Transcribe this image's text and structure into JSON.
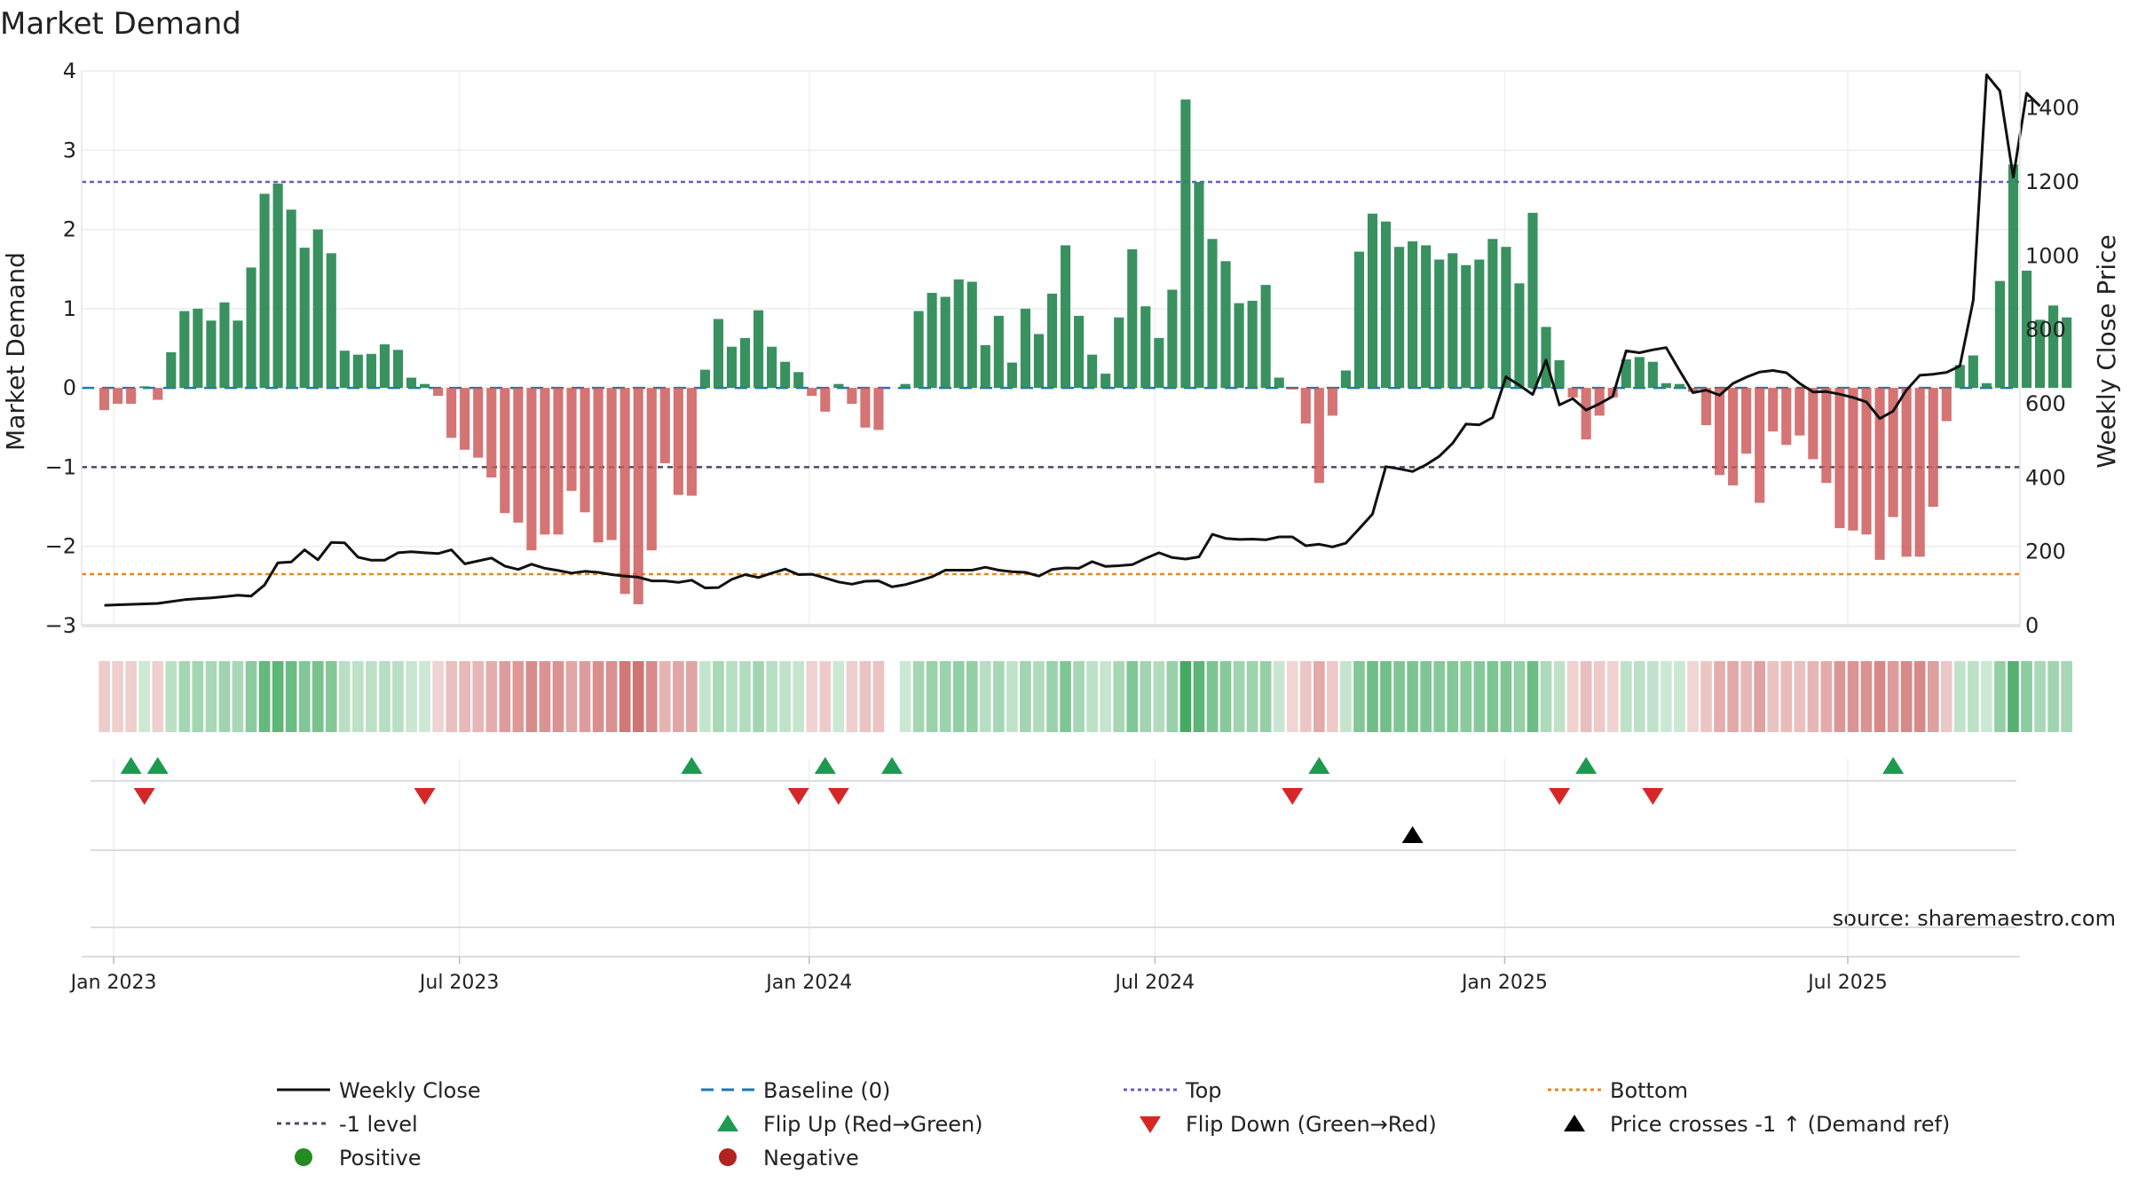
{
  "chart_data": {
    "type": "bar",
    "title": "Market Demand",
    "ylabel": "Market Demand",
    "y2label": "Weekly Close Price",
    "ylim": [
      -3,
      4
    ],
    "y2lim": [
      0,
      1500
    ],
    "yticks": [
      -3,
      -2,
      -1,
      0,
      1,
      2,
      3,
      4
    ],
    "y2ticks": [
      0,
      200,
      400,
      600,
      800,
      1000,
      1200,
      1400
    ],
    "ytick_labels": [
      "−3",
      "−2",
      "−1",
      "0",
      "1",
      "2",
      "3",
      "4"
    ],
    "y2tick_labels": [
      "0",
      "200",
      "400",
      "600",
      "800",
      "1000",
      "1200",
      "1400"
    ],
    "x_range_weeks": [
      -1.7,
      143.5
    ],
    "xticks": [
      {
        "label": "Jan 2023",
        "week": 0.7
      },
      {
        "label": "Jul 2023",
        "week": 26.6
      },
      {
        "label": "Jan 2024",
        "week": 52.8
      },
      {
        "label": "Jul 2024",
        "week": 78.7
      },
      {
        "label": "Jan 2025",
        "week": 104.9
      },
      {
        "label": "Jul 2025",
        "week": 130.6
      }
    ],
    "reference_lines": {
      "baseline": 0,
      "top": 2.6,
      "minus_one": -1,
      "bottom": -2.35
    },
    "colors": {
      "positive": "#2e8b57",
      "negative": "#cd5c5c",
      "price": "#111111",
      "baseline": "#1f77b4",
      "top": "#6a5acd",
      "minus_one": "#4a4a6a",
      "bottom": "#e08a1e",
      "flip_up": "#1e9a50",
      "flip_down": "#d62728",
      "cross": "#000000",
      "legend_positive": "#228b22",
      "legend_negative": "#b22222"
    },
    "demand": [
      -0.28,
      -0.2,
      -0.2,
      0.02,
      -0.15,
      0.45,
      0.97,
      1.0,
      0.85,
      1.08,
      0.85,
      1.52,
      2.45,
      2.58,
      2.25,
      1.77,
      2.0,
      1.7,
      0.47,
      0.42,
      0.43,
      0.55,
      0.48,
      0.13,
      0.05,
      -0.1,
      -0.63,
      -0.78,
      -0.88,
      -1.13,
      -1.58,
      -1.7,
      -2.05,
      -1.85,
      -1.85,
      -1.3,
      -1.57,
      -1.95,
      -1.92,
      -2.6,
      -2.73,
      -2.05,
      -0.95,
      -1.35,
      -1.36,
      0.23,
      0.87,
      0.52,
      0.63,
      0.98,
      0.52,
      0.33,
      0.2,
      -0.1,
      -0.3,
      0.05,
      -0.2,
      -0.5,
      -0.53,
      0,
      0.05,
      0.97,
      1.2,
      1.15,
      1.37,
      1.34,
      0.54,
      0.91,
      0.32,
      1.0,
      0.68,
      1.19,
      1.8,
      0.91,
      0.42,
      0.18,
      0.89,
      1.75,
      1.03,
      0.63,
      1.24,
      3.64,
      2.6,
      1.88,
      1.6,
      1.07,
      1.1,
      1.3,
      0.13,
      -0.02,
      -0.45,
      -1.2,
      -0.35,
      0.22,
      1.72,
      2.2,
      2.1,
      1.78,
      1.85,
      1.8,
      1.62,
      1.7,
      1.55,
      1.62,
      1.88,
      1.78,
      1.32,
      2.21,
      0.77,
      0.35,
      -0.12,
      -0.65,
      -0.35,
      -0.12,
      0.36,
      0.39,
      0.33,
      0.06,
      0.05,
      -0.05,
      -0.47,
      -1.1,
      -1.23,
      -0.83,
      -1.45,
      -0.55,
      -0.72,
      -0.6,
      -0.9,
      -1.2,
      -1.77,
      -1.8,
      -1.85,
      -2.17,
      -1.63,
      -2.13,
      -2.13,
      -1.5,
      -0.42,
      0.29,
      0.41,
      0.06,
      1.35,
      2.82,
      1.48,
      0.86,
      1.04,
      0.89
    ],
    "price": [
      [
        0,
        55
      ],
      [
        4,
        60
      ],
      [
        6,
        70
      ],
      [
        7,
        73
      ],
      [
        8,
        75
      ],
      [
        10,
        82
      ],
      [
        11,
        80
      ],
      [
        12,
        110
      ],
      [
        13,
        170
      ],
      [
        14,
        172
      ],
      [
        15,
        205
      ],
      [
        16,
        178
      ],
      [
        17,
        225
      ],
      [
        18,
        224
      ],
      [
        19,
        185
      ],
      [
        20,
        177
      ],
      [
        21,
        177
      ],
      [
        22,
        197
      ],
      [
        23,
        200
      ],
      [
        24,
        197
      ],
      [
        25,
        195
      ],
      [
        26,
        205
      ],
      [
        27,
        167
      ],
      [
        28,
        175
      ],
      [
        29,
        183
      ],
      [
        30,
        161
      ],
      [
        31,
        152
      ],
      [
        32,
        166
      ],
      [
        33,
        155
      ],
      [
        34,
        149
      ],
      [
        35,
        142
      ],
      [
        36,
        147
      ],
      [
        37,
        144
      ],
      [
        38,
        138
      ],
      [
        39,
        134
      ],
      [
        40,
        131
      ],
      [
        41,
        121
      ],
      [
        42,
        121
      ],
      [
        43,
        117
      ],
      [
        44,
        123
      ],
      [
        45,
        102
      ],
      [
        46,
        103
      ],
      [
        47,
        125
      ],
      [
        48,
        138
      ],
      [
        49,
        130
      ],
      [
        50,
        142
      ],
      [
        51,
        153
      ],
      [
        52,
        138
      ],
      [
        53,
        139
      ],
      [
        54,
        129
      ],
      [
        55,
        118
      ],
      [
        56,
        112
      ],
      [
        57,
        120
      ],
      [
        58,
        121
      ],
      [
        59,
        105
      ],
      [
        60,
        111
      ],
      [
        61,
        121
      ],
      [
        62,
        132
      ],
      [
        63,
        150
      ],
      [
        64,
        150
      ],
      [
        65,
        150
      ],
      [
        66,
        158
      ],
      [
        67,
        150
      ],
      [
        68,
        146
      ],
      [
        69,
        144
      ],
      [
        70,
        134
      ],
      [
        71,
        152
      ],
      [
        72,
        156
      ],
      [
        73,
        155
      ],
      [
        74,
        173
      ],
      [
        75,
        160
      ],
      [
        76,
        162
      ],
      [
        77,
        165
      ],
      [
        78,
        182
      ],
      [
        79,
        197
      ],
      [
        80,
        184
      ],
      [
        81,
        180
      ],
      [
        82,
        186
      ],
      [
        83,
        247
      ],
      [
        84,
        236
      ],
      [
        85,
        233
      ],
      [
        86,
        234
      ],
      [
        87,
        232
      ],
      [
        88,
        240
      ],
      [
        89,
        240
      ],
      [
        90,
        216
      ],
      [
        91,
        220
      ],
      [
        92,
        213
      ],
      [
        93,
        223
      ],
      [
        94,
        262
      ],
      [
        95,
        302
      ],
      [
        96,
        430
      ],
      [
        97,
        424
      ],
      [
        98,
        417
      ],
      [
        99,
        435
      ],
      [
        100,
        458
      ],
      [
        101,
        493
      ],
      [
        102,
        545
      ],
      [
        103,
        543
      ],
      [
        104,
        563
      ],
      [
        105,
        673
      ],
      [
        106,
        650
      ],
      [
        107,
        625
      ],
      [
        108,
        718
      ],
      [
        109,
        597
      ],
      [
        110,
        614
      ],
      [
        111,
        583
      ],
      [
        112,
        600
      ],
      [
        113,
        620
      ],
      [
        114,
        743
      ],
      [
        115,
        738
      ],
      [
        116,
        746
      ],
      [
        117,
        752
      ],
      [
        118,
        690
      ],
      [
        119,
        630
      ],
      [
        120,
        637
      ],
      [
        121,
        623
      ],
      [
        122,
        655
      ],
      [
        123,
        672
      ],
      [
        124,
        686
      ],
      [
        125,
        690
      ],
      [
        126,
        684
      ],
      [
        127,
        655
      ],
      [
        128,
        632
      ],
      [
        129,
        633
      ],
      [
        130,
        626
      ],
      [
        131,
        617
      ],
      [
        132,
        605
      ],
      [
        133,
        560
      ],
      [
        134,
        580
      ],
      [
        135,
        637
      ],
      [
        136,
        677
      ],
      [
        137,
        680
      ],
      [
        138,
        685
      ],
      [
        139,
        702
      ],
      [
        140,
        880
      ],
      [
        141,
        1490
      ],
      [
        142,
        1446
      ],
      [
        143,
        1213
      ],
      [
        144,
        1440
      ],
      [
        145,
        1405
      ]
    ],
    "flip_up_weeks": [
      2,
      4,
      44,
      54,
      59,
      91,
      111,
      134
    ],
    "flip_down_weeks": [
      3,
      24,
      52,
      55,
      89,
      109,
      116
    ],
    "cross_weeks": [
      98
    ],
    "legend": {
      "weekly_close": "Weekly Close",
      "baseline": "Baseline (0)",
      "top": "Top",
      "bottom": "Bottom",
      "minus_one": "-1 level",
      "flip_up": "Flip Up (Red→Green)",
      "flip_down": "Flip Down (Green→Red)",
      "cross": "Price crosses -1 ↑ (Demand ref)",
      "positive": "Positive",
      "negative": "Negative"
    },
    "source": "source: sharemaestro.com"
  }
}
